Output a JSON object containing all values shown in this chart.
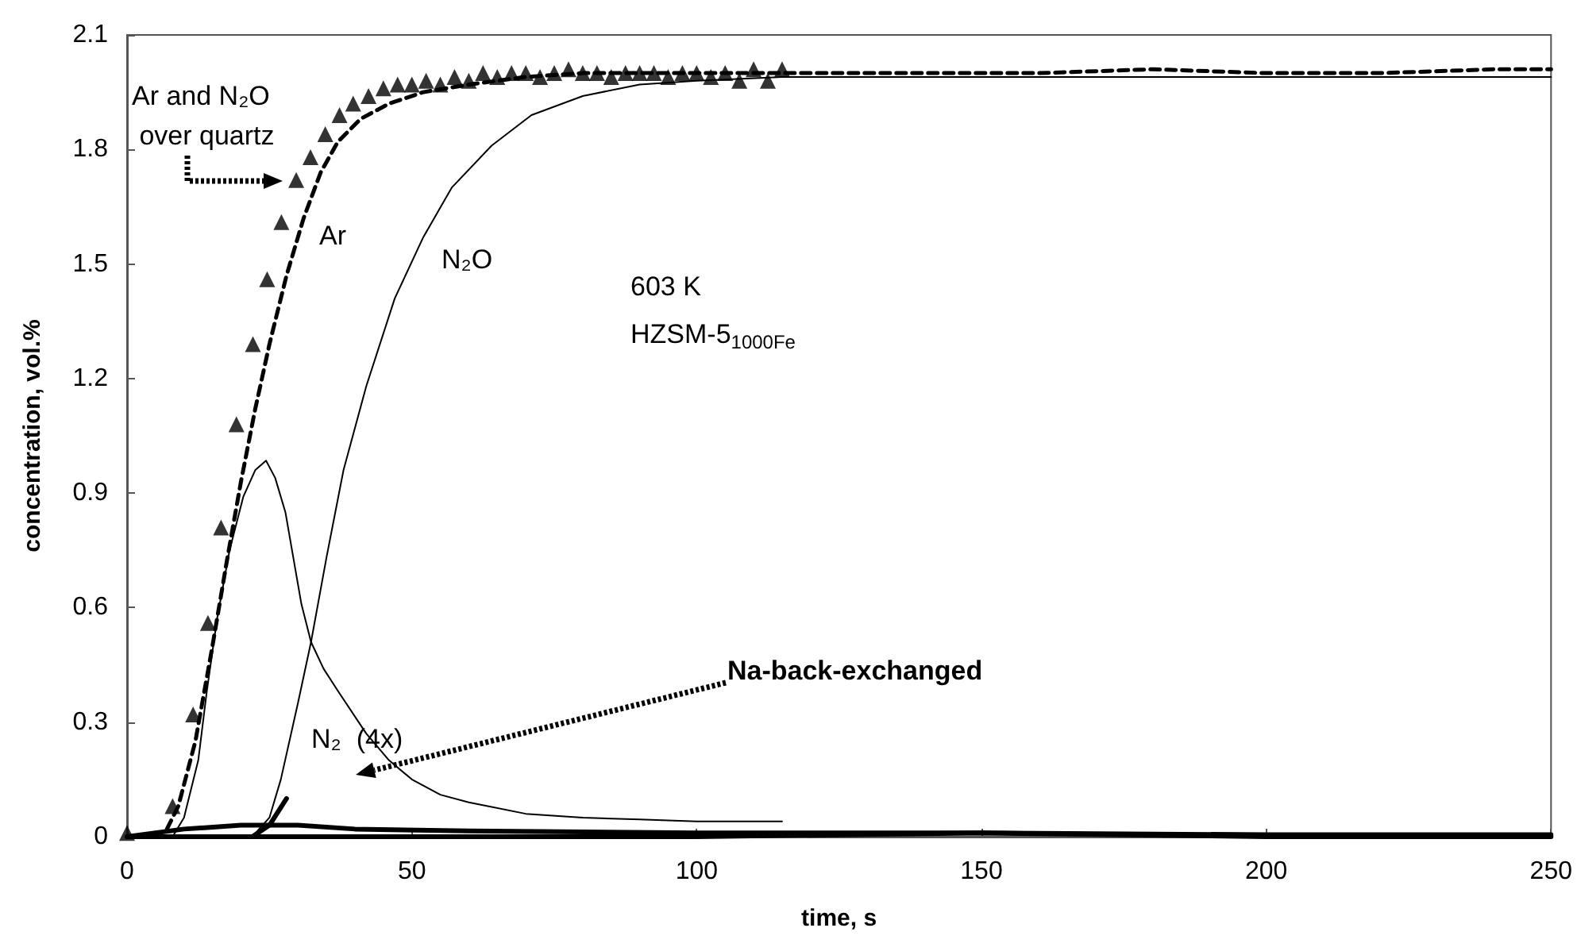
{
  "chart_data": {
    "type": "line",
    "xlabel": "time, s",
    "ylabel": "concentration, vol.%",
    "xlim": [
      0,
      250
    ],
    "xticks": [
      0,
      50,
      100,
      150,
      200,
      250
    ],
    "ylim": [
      0,
      2.1
    ],
    "yticks": [
      0,
      0.3,
      0.6,
      0.9,
      1.2,
      1.5,
      1.8,
      2.1
    ],
    "series": [
      {
        "type": "scatter",
        "marker": "triangle",
        "color": "#000000",
        "x": [
          0,
          8,
          11.6,
          14.2,
          16.5,
          19.2,
          22.1,
          24.6,
          27.1,
          29.7,
          32.2,
          34.8,
          37.3,
          39.7,
          42.4,
          45,
          47.5,
          50,
          52.5,
          55,
          57.5,
          60,
          62.5,
          65,
          67.5,
          70,
          72.5,
          75,
          77.5,
          80,
          82.5,
          85,
          87.5,
          90,
          92.5,
          95,
          97.5,
          100,
          102.5,
          105,
          107.5,
          110,
          112.5,
          115
        ],
        "values": [
          0.01,
          0.08,
          0.32,
          0.56,
          0.81,
          1.08,
          1.29,
          1.46,
          1.61,
          1.72,
          1.78,
          1.84,
          1.89,
          1.92,
          1.94,
          1.96,
          1.97,
          1.97,
          1.98,
          1.97,
          1.99,
          1.98,
          2.0,
          1.99,
          2.0,
          2.0,
          1.99,
          2.0,
          2.01,
          2.0,
          2.0,
          1.99,
          2.0,
          2.0,
          2.0,
          1.99,
          2.0,
          2.0,
          1.99,
          2.0,
          1.98,
          2.01,
          1.98,
          2.01
        ]
      },
      {
        "line_style": "dashed",
        "marker": "none",
        "color": "#000000",
        "x": [
          7,
          9,
          12,
          15,
          17.5,
          20,
          22.5,
          25,
          28,
          31,
          34,
          37,
          41,
          46,
          52,
          60,
          70,
          80,
          100,
          120,
          140,
          160,
          180,
          200,
          220,
          240,
          250
        ],
        "values": [
          0.02,
          0.08,
          0.25,
          0.5,
          0.72,
          0.93,
          1.12,
          1.29,
          1.47,
          1.62,
          1.74,
          1.82,
          1.88,
          1.92,
          1.95,
          1.97,
          1.99,
          2.0,
          2.0,
          2.0,
          2.0,
          2.0,
          2.01,
          2.0,
          2.0,
          2.01,
          2.01
        ]
      },
      {
        "line_style": "solid",
        "marker": "none",
        "color": "#000000",
        "x": [
          22,
          25,
          27,
          30,
          32.3,
          35,
          38,
          42,
          47,
          52,
          57,
          64,
          71,
          80,
          90,
          100,
          115,
          140,
          170,
          200,
          230,
          250
        ],
        "values": [
          0,
          0.05,
          0.15,
          0.35,
          0.51,
          0.73,
          0.96,
          1.18,
          1.41,
          1.57,
          1.7,
          1.81,
          1.89,
          1.94,
          1.97,
          1.98,
          1.99,
          1.99,
          1.99,
          1.99,
          1.99,
          1.99
        ]
      },
      {
        "line_style": "solid",
        "marker": "none",
        "color": "#000000",
        "x": [
          8,
          10,
          12.5,
          14,
          15.8,
          18,
          20.4,
          22.5,
          24.4,
          26,
          27.8,
          30.6,
          32.3,
          34.5,
          37.1,
          42,
          46,
          50,
          55,
          60,
          70,
          80,
          90,
          100,
          115
        ],
        "values": [
          0,
          0.05,
          0.2,
          0.38,
          0.57,
          0.75,
          0.89,
          0.96,
          0.985,
          0.94,
          0.85,
          0.61,
          0.51,
          0.44,
          0.38,
          0.27,
          0.2,
          0.15,
          0.11,
          0.09,
          0.06,
          0.05,
          0.045,
          0.04,
          0.04
        ]
      },
      {
        "line_style": "solid",
        "marker": "none",
        "color": "#000000",
        "x": [
          0,
          10,
          20,
          30,
          40,
          60,
          100,
          150,
          200,
          250
        ],
        "values": [
          0,
          0.02,
          0.03,
          0.03,
          0.02,
          0.015,
          0.01,
          0.01,
          0.005,
          0.005
        ]
      },
      {
        "line_style": "solid",
        "marker": "none",
        "color": "#000000",
        "x": [
          0,
          50,
          100,
          150,
          200,
          250
        ],
        "values": [
          0,
          0,
          0,
          0.01,
          0,
          0
        ]
      },
      {
        "line_style": "solid",
        "marker": "none",
        "color": "#000000",
        "x": [
          22,
          25,
          28
        ],
        "values": [
          0,
          0.03,
          0.1
        ]
      }
    ],
    "annotations": [
      "Ar and N₂O over quartz",
      "Ar",
      "N₂O",
      "N₂  (4x)",
      "603 K",
      "HZSM-5$_{1000Fe}$",
      "Na-back-exchanged"
    ]
  }
}
